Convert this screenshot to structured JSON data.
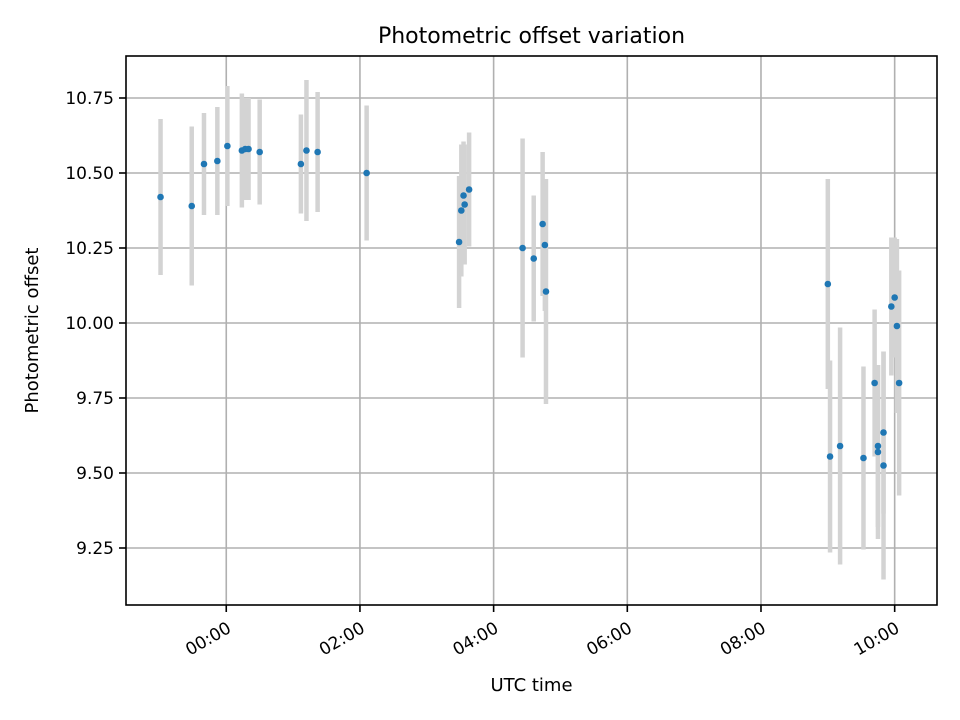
{
  "chart_data": {
    "type": "scatter",
    "title": "Photometric offset variation",
    "xlabel": "UTC time",
    "ylabel": "Photometric offset",
    "x_axis_type": "time",
    "x_ticks": [
      "00:00",
      "02:00",
      "04:00",
      "06:00",
      "08:00",
      "10:00"
    ],
    "x_tick_rotation_deg": 30,
    "xlim": [
      "-01:30",
      "10:38"
    ],
    "y_ticks": [
      9.25,
      9.5,
      9.75,
      10.0,
      10.25,
      10.5,
      10.75
    ],
    "y_tick_labels": [
      "9.25",
      "9.50",
      "9.75",
      "10.00",
      "10.25",
      "10.50",
      "10.75"
    ],
    "ylim": [
      9.06,
      10.89
    ],
    "grid": true,
    "colors": {
      "marker": "#1f77b4",
      "errorbar": "#d3d3d3"
    },
    "series": [
      {
        "marker": "point",
        "points": [
          {
            "x": "-00:59",
            "y": 10.42,
            "yerr": 0.26
          },
          {
            "x": "-00:31",
            "y": 10.39,
            "yerr": 0.265
          },
          {
            "x": "-00:20",
            "y": 10.53,
            "yerr": 0.17
          },
          {
            "x": "-00:08",
            "y": 10.54,
            "yerr": 0.18
          },
          {
            "x": "00:01",
            "y": 10.59,
            "yerr": 0.2
          },
          {
            "x": "00:14",
            "y": 10.575,
            "yerr": 0.19
          },
          {
            "x": "00:17",
            "y": 10.58,
            "yerr": 0.17
          },
          {
            "x": "00:20",
            "y": 10.58,
            "yerr": 0.17
          },
          {
            "x": "00:30",
            "y": 10.57,
            "yerr": 0.175
          },
          {
            "x": "01:07",
            "y": 10.53,
            "yerr": 0.165
          },
          {
            "x": "01:12",
            "y": 10.575,
            "yerr": 0.235
          },
          {
            "x": "01:22",
            "y": 10.57,
            "yerr": 0.2
          },
          {
            "x": "02:06",
            "y": 10.5,
            "yerr": 0.225
          },
          {
            "x": "03:29",
            "y": 10.27,
            "yerr": 0.22
          },
          {
            "x": "03:31",
            "y": 10.375,
            "yerr": 0.22
          },
          {
            "x": "03:33",
            "y": 10.425,
            "yerr": 0.18
          },
          {
            "x": "03:34",
            "y": 10.395,
            "yerr": 0.2
          },
          {
            "x": "03:38",
            "y": 10.445,
            "yerr": 0.19
          },
          {
            "x": "04:26",
            "y": 10.25,
            "yerr": 0.365
          },
          {
            "x": "04:36",
            "y": 10.215,
            "yerr": 0.21
          },
          {
            "x": "04:44",
            "y": 10.33,
            "yerr": 0.24
          },
          {
            "x": "04:46",
            "y": 10.26,
            "yerr": 0.22
          },
          {
            "x": "04:47",
            "y": 10.105,
            "yerr": 0.375
          },
          {
            "x": "09:00",
            "y": 10.13,
            "yerr": 0.35
          },
          {
            "x": "09:02",
            "y": 9.555,
            "yerr": 0.32
          },
          {
            "x": "09:11",
            "y": 9.59,
            "yerr": 0.395
          },
          {
            "x": "09:32",
            "y": 9.55,
            "yerr": 0.305
          },
          {
            "x": "09:42",
            "y": 9.8,
            "yerr": 0.245
          },
          {
            "x": "09:45",
            "y": 9.57,
            "yerr": 0.29
          },
          {
            "x": "09:45",
            "y": 9.59,
            "yerr": 0.27
          },
          {
            "x": "09:50",
            "y": 9.525,
            "yerr": 0.38
          },
          {
            "x": "09:50",
            "y": 9.635,
            "yerr": 0.27
          },
          {
            "x": "09:57",
            "y": 10.055,
            "yerr": 0.23
          },
          {
            "x": "10:00",
            "y": 10.085,
            "yerr": 0.2
          },
          {
            "x": "10:02",
            "y": 9.99,
            "yerr": 0.29
          },
          {
            "x": "10:04",
            "y": 9.8,
            "yerr": 0.375
          }
        ]
      }
    ]
  }
}
